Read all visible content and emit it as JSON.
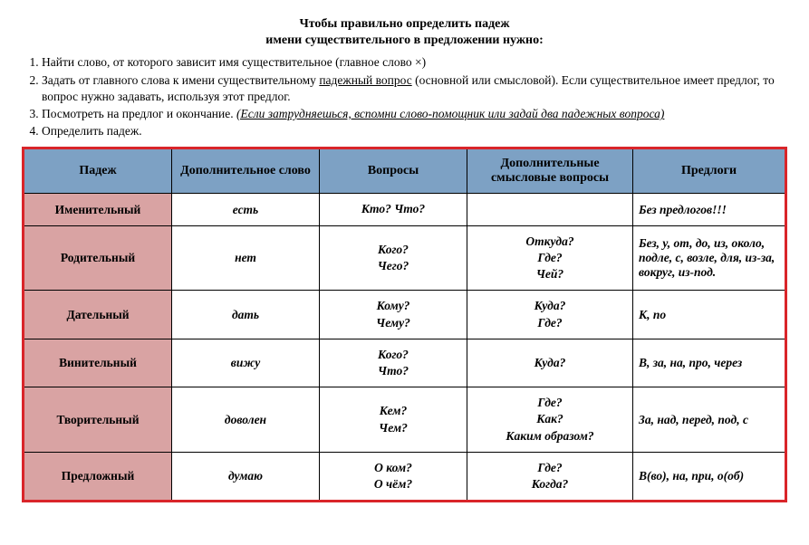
{
  "title": {
    "line1": "Чтобы правильно определить падеж",
    "line2": "имени существительного в предложении нужно:"
  },
  "instructions": {
    "i1_pre": "Найти слово, от которого зависит имя существительное (главное слово ×)",
    "i2_pre": "Задать от главного слова к имени существительному ",
    "i2_u": "падежный вопрос",
    "i2_post": " (основной или смысловой). Если существительное имеет предлог, то вопрос нужно задавать, используя этот предлог.",
    "i3_pre": "Посмотреть на предлог и окончание. ",
    "i3_i": "(Если затрудняешься, вспомни слово-помощник или задай два падежных вопроса)",
    "i4": "Определить падеж."
  },
  "headers": {
    "case": "Падеж",
    "extra": "Дополнительное слово",
    "questions": "Вопросы",
    "sense": "Дополнительные смысловые вопросы",
    "prepositions": "Предлоги"
  },
  "rows": {
    "r1": {
      "case": "Именительный",
      "extra": "есть",
      "q": "Кто? Что?",
      "sense": "",
      "prep": "Без предлогов!!!"
    },
    "r2": {
      "case": "Родительный",
      "extra": "нет",
      "q": "Кого?\nЧего?",
      "sense": "Откуда?\nГде?\nЧей?",
      "prep": "Без, у, от, до, из, около, подле, с, возле, для,     из-за, вокруг, из-под."
    },
    "r3": {
      "case": "Дательный",
      "extra": "дать",
      "q": "Кому?\nЧему?",
      "sense": "Куда?\nГде?",
      "prep": "К, по"
    },
    "r4": {
      "case": "Винительный",
      "extra": "вижу",
      "q": "Кого?\nЧто?",
      "sense": "Куда?",
      "prep": "В, за, на, про, через"
    },
    "r5": {
      "case": "Творительный",
      "extra": "доволен",
      "q": "Кем?\nЧем?",
      "sense": "Где?\nКак?\nКаким образом?",
      "prep": "За, над, перед, под, с"
    },
    "r6": {
      "case": "Предложный",
      "extra": "думаю",
      "q": "О ком?\nО чём?",
      "sense": "Где?\nКогда?",
      "prep": "В(во), на, при, о(об)"
    }
  },
  "styles": {
    "header_bg": "#7da1c4",
    "casecol_bg": "#d9a3a3",
    "border_outer": "#d9252a",
    "border_inner": "#000000"
  }
}
